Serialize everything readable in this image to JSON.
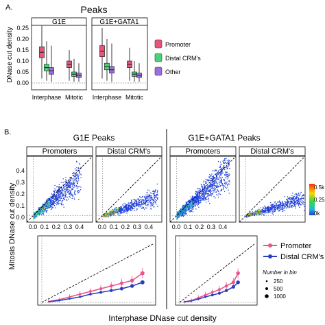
{
  "panel_a": {
    "letter": "A.",
    "title": "Peaks",
    "ylabel": "DNase cut density",
    "yticks": [
      "0.25",
      "0.20",
      "0.15",
      "0.10",
      "0.05",
      "0.00"
    ],
    "facets": [
      "G1E",
      "G1E+GATA1"
    ],
    "xcategories": [
      "Interphase",
      "Mitotic"
    ],
    "legend": [
      "Promoter",
      "Distal CRM's",
      "Other"
    ]
  },
  "panel_b": {
    "letter": "B.",
    "group_titles": [
      "G1E Peaks",
      "G1E+GATA1 Peaks"
    ],
    "subtitles": [
      "Promoters",
      "Distal CRM's"
    ],
    "ylabel": "Mitosis DNase cut density",
    "xlabel": "Interphase DNase cut density",
    "ticks": [
      "0.0",
      "0.1",
      "0.2",
      "0.3",
      "0.4"
    ],
    "colorbar": {
      "title": "",
      "labels": [
        "0.5k",
        "0.25k",
        "0k"
      ]
    },
    "line_legend": [
      "Promoter",
      "Distal CRM's"
    ],
    "size_legend": {
      "title": "Number in bin",
      "labels": [
        "250",
        "500",
        "1000"
      ]
    }
  },
  "colors": {
    "promoter": "#e8547a",
    "distal": "#4ad27a",
    "other": "#9b6fe0",
    "line_promoter": "#e8558e",
    "line_distal": "#2a3fbf",
    "scatter": "#3f5fe6"
  },
  "chart_data": [
    {
      "type": "box",
      "facets": [
        "G1E",
        "G1E+GATA1"
      ],
      "categories": [
        "Interphase",
        "Mitotic"
      ],
      "ylim": [
        0,
        0.27
      ],
      "series": [
        {
          "name": "Promoter",
          "boxes": [
            {
              "facet": "G1E",
              "category": "Interphase",
              "q1": 0.115,
              "median": 0.14,
              "q3": 0.165,
              "whisker_low": 0.02,
              "whisker_high": 0.26
            },
            {
              "facet": "G1E",
              "category": "Mitotic",
              "q1": 0.07,
              "median": 0.085,
              "q3": 0.1,
              "whisker_low": 0.01,
              "whisker_high": 0.15
            },
            {
              "facet": "G1E+GATA1",
              "category": "Interphase",
              "q1": 0.12,
              "median": 0.145,
              "q3": 0.17,
              "whisker_low": 0.02,
              "whisker_high": 0.25
            },
            {
              "facet": "G1E+GATA1",
              "category": "Mitotic",
              "q1": 0.07,
              "median": 0.085,
              "q3": 0.1,
              "whisker_low": 0.01,
              "whisker_high": 0.16
            }
          ]
        },
        {
          "name": "Distal CRM's",
          "boxes": [
            {
              "facet": "G1E",
              "category": "Interphase",
              "q1": 0.055,
              "median": 0.07,
              "q3": 0.085,
              "whisker_low": 0.01,
              "whisker_high": 0.19
            },
            {
              "facet": "G1E",
              "category": "Mitotic",
              "q1": 0.03,
              "median": 0.04,
              "q3": 0.05,
              "whisker_low": 0.005,
              "whisker_high": 0.11
            },
            {
              "facet": "G1E+GATA1",
              "category": "Interphase",
              "q1": 0.06,
              "median": 0.075,
              "q3": 0.09,
              "whisker_low": 0.01,
              "whisker_high": 0.2
            },
            {
              "facet": "G1E+GATA1",
              "category": "Mitotic",
              "q1": 0.03,
              "median": 0.04,
              "q3": 0.05,
              "whisker_low": 0.005,
              "whisker_high": 0.1
            }
          ]
        },
        {
          "name": "Other",
          "boxes": [
            {
              "facet": "G1E",
              "category": "Interphase",
              "q1": 0.04,
              "median": 0.055,
              "q3": 0.07,
              "whisker_low": 0.005,
              "whisker_high": 0.17
            },
            {
              "facet": "G1E",
              "category": "Mitotic",
              "q1": 0.025,
              "median": 0.035,
              "q3": 0.045,
              "whisker_low": 0.005,
              "whisker_high": 0.09
            },
            {
              "facet": "G1E+GATA1",
              "category": "Interphase",
              "q1": 0.045,
              "median": 0.06,
              "q3": 0.075,
              "whisker_low": 0.005,
              "whisker_high": 0.18
            },
            {
              "facet": "G1E+GATA1",
              "category": "Mitotic",
              "q1": 0.025,
              "median": 0.035,
              "q3": 0.045,
              "whisker_low": 0.005,
              "whisker_high": 0.09
            }
          ]
        }
      ]
    },
    {
      "type": "heatmap",
      "facets": [
        "G1E Promoters",
        "G1E Distal CRM's",
        "G1E+GATA1 Promoters",
        "G1E+GATA1 Distal CRM's"
      ],
      "xlim": [
        -0.05,
        0.45
      ],
      "ylim": [
        -0.05,
        0.45
      ],
      "colorbar_labels": [
        "0.5k",
        "0.25k",
        "0k"
      ]
    },
    {
      "type": "line",
      "facets": [
        "G1E Peaks",
        "G1E+GATA1 Peaks"
      ],
      "xlim": [
        0,
        0.32
      ],
      "ylim": [
        0,
        0.35
      ],
      "series": [
        {
          "name": "Promoter",
          "facet": "G1E Peaks",
          "x": [
            0.02,
            0.05,
            0.08,
            0.11,
            0.14,
            0.17,
            0.2,
            0.23,
            0.26,
            0.29
          ],
          "y": [
            0.005,
            0.015,
            0.03,
            0.045,
            0.06,
            0.075,
            0.09,
            0.105,
            0.12,
            0.16
          ]
        },
        {
          "name": "Distal CRM's",
          "facet": "G1E Peaks",
          "x": [
            0.02,
            0.05,
            0.08,
            0.11,
            0.14,
            0.17,
            0.2,
            0.23,
            0.26,
            0.29
          ],
          "y": [
            0.004,
            0.01,
            0.02,
            0.03,
            0.045,
            0.055,
            0.065,
            0.075,
            0.09,
            0.11
          ]
        },
        {
          "name": "Promoter",
          "facet": "G1E+GATA1 Peaks",
          "x": [
            0.02,
            0.05,
            0.08,
            0.11,
            0.14,
            0.17,
            0.2,
            0.23,
            0.25
          ],
          "y": [
            0.003,
            0.01,
            0.025,
            0.04,
            0.055,
            0.07,
            0.09,
            0.11,
            0.16
          ]
        },
        {
          "name": "Distal CRM's",
          "facet": "G1E+GATA1 Peaks",
          "x": [
            0.02,
            0.05,
            0.08,
            0.11,
            0.14,
            0.17,
            0.2,
            0.23,
            0.25
          ],
          "y": [
            0.003,
            0.008,
            0.018,
            0.03,
            0.04,
            0.05,
            0.065,
            0.085,
            0.11
          ]
        }
      ]
    }
  ]
}
